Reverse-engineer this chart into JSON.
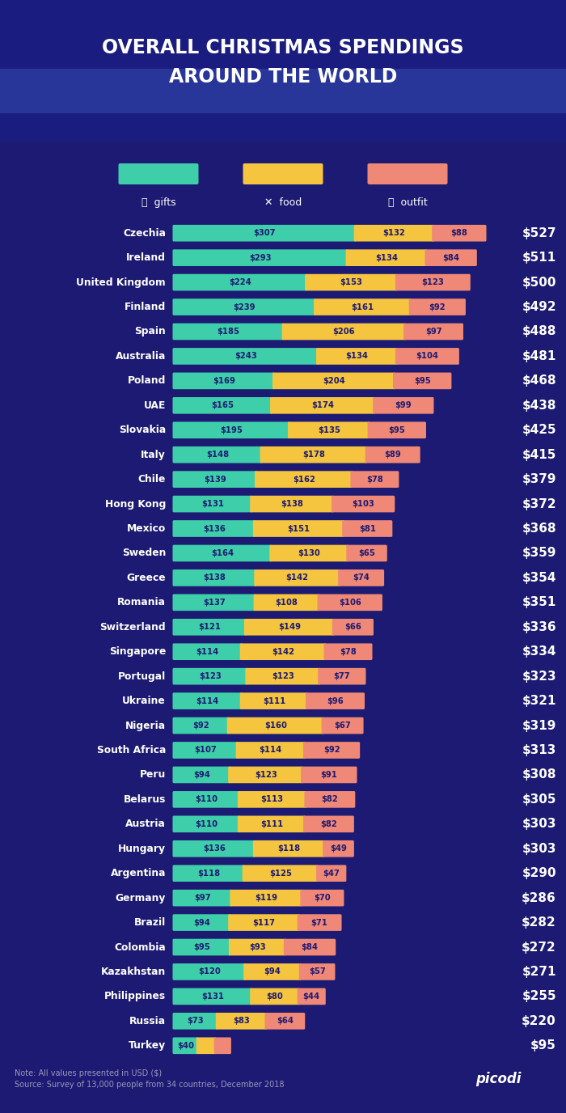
{
  "bg_color": "#1c1a72",
  "header_bg": "#1a2080",
  "gift_color": "#3ecfaa",
  "food_color": "#f5c540",
  "outfit_color": "#f08878",
  "white": "#ffffff",
  "note_color": "#9999bb",
  "inner_text_color": "#1c1a72",
  "countries": [
    "Czechia",
    "Ireland",
    "United Kingdom",
    "Finland",
    "Spain",
    "Australia",
    "Poland",
    "UAE",
    "Slovakia",
    "Italy",
    "Chile",
    "Hong Kong",
    "Mexico",
    "Sweden",
    "Greece",
    "Romania",
    "Switzerland",
    "Singapore",
    "Portugal",
    "Ukraine",
    "Nigeria",
    "South Africa",
    "Peru",
    "Belarus",
    "Austria",
    "Hungary",
    "Argentina",
    "Germany",
    "Brazil",
    "Colombia",
    "Kazakhstan",
    "Philippines",
    "Russia",
    "Turkey"
  ],
  "gifts": [
    307,
    293,
    224,
    239,
    185,
    243,
    169,
    165,
    195,
    148,
    139,
    131,
    136,
    164,
    138,
    137,
    121,
    114,
    123,
    114,
    92,
    107,
    94,
    110,
    110,
    136,
    118,
    97,
    94,
    95,
    120,
    131,
    73,
    40
  ],
  "food": [
    132,
    134,
    153,
    161,
    206,
    134,
    204,
    174,
    135,
    178,
    162,
    138,
    151,
    130,
    142,
    108,
    149,
    142,
    123,
    111,
    160,
    114,
    123,
    113,
    111,
    118,
    125,
    119,
    117,
    93,
    94,
    80,
    83,
    30
  ],
  "outfit": [
    88,
    84,
    123,
    92,
    97,
    104,
    95,
    99,
    95,
    89,
    78,
    103,
    81,
    65,
    74,
    106,
    66,
    78,
    77,
    96,
    67,
    92,
    91,
    82,
    82,
    49,
    47,
    70,
    71,
    84,
    57,
    44,
    64,
    25
  ],
  "totals": [
    527,
    511,
    500,
    492,
    488,
    481,
    468,
    438,
    425,
    415,
    379,
    372,
    368,
    359,
    354,
    351,
    336,
    334,
    323,
    321,
    319,
    313,
    308,
    305,
    303,
    303,
    290,
    286,
    282,
    272,
    271,
    255,
    220,
    95
  ],
  "note_line1": "Note: All values presented in USD ($)",
  "note_line2": "Source: Survey of 13,000 people from 34 countries, December 2018",
  "title_line1": "OVERALL CHRISTMAS SPENDINGS",
  "title_line2": "AROUND THE WORLD",
  "legend_labels": [
    "gifts",
    "food",
    "outfit"
  ],
  "max_bar_val": 527
}
